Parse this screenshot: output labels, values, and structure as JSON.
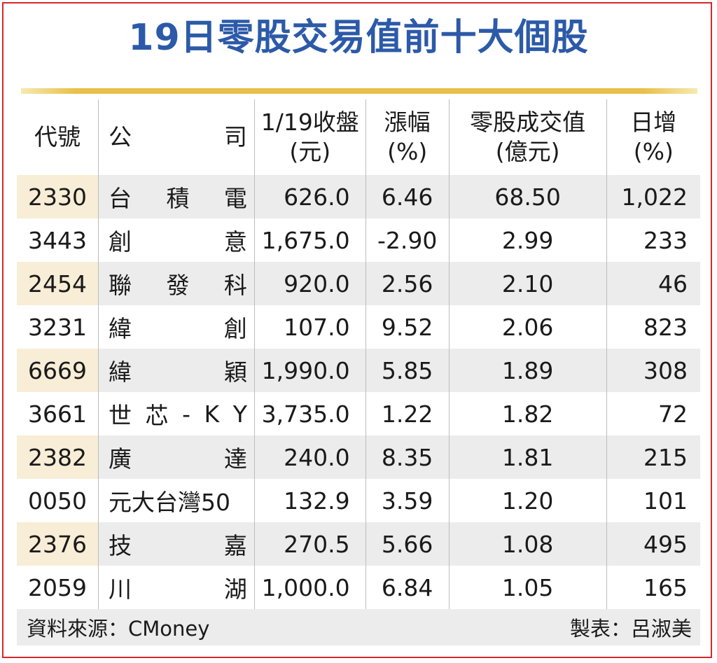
{
  "title": "19日零股交易值前十大個股",
  "headers": {
    "code": "代號",
    "company_left": "公",
    "company_right": "司",
    "close_line1": "1/19收盤",
    "close_line2": "(元)",
    "change_line1": "漲幅",
    "change_line2": "(%)",
    "value_line1": "零股成交值",
    "value_line2": "(億元)",
    "increase_line1": "日增",
    "increase_line2": "(%)"
  },
  "rows": [
    {
      "code": "2330",
      "company": [
        "台",
        "積",
        "電"
      ],
      "close": "626.0",
      "change": "6.46",
      "value": "68.50",
      "increase": "1,022"
    },
    {
      "code": "3443",
      "company": [
        "創",
        "意"
      ],
      "close": "1,675.0",
      "change": "-2.90",
      "value": "2.99",
      "increase": "233"
    },
    {
      "code": "2454",
      "company": [
        "聯",
        "發",
        "科"
      ],
      "close": "920.0",
      "change": "2.56",
      "value": "2.10",
      "increase": "46"
    },
    {
      "code": "3231",
      "company": [
        "緯",
        "創"
      ],
      "close": "107.0",
      "change": "9.52",
      "value": "2.06",
      "increase": "823"
    },
    {
      "code": "6669",
      "company": [
        "緯",
        "穎"
      ],
      "close": "1,990.0",
      "change": "5.85",
      "value": "1.89",
      "increase": "308"
    },
    {
      "code": "3661",
      "company": [
        "世",
        "芯",
        "-",
        "K",
        "Y"
      ],
      "close": "3,735.0",
      "change": "1.22",
      "value": "1.82",
      "increase": "72"
    },
    {
      "code": "2382",
      "company": [
        "廣",
        "達"
      ],
      "close": "240.0",
      "change": "8.35",
      "value": "1.81",
      "increase": "215"
    },
    {
      "code": "0050",
      "company": [
        "元大台灣50"
      ],
      "close": "132.9",
      "change": "3.59",
      "value": "1.20",
      "increase": "101"
    },
    {
      "code": "2376",
      "company": [
        "技",
        "嘉"
      ],
      "close": "270.5",
      "change": "5.66",
      "value": "1.08",
      "increase": "495"
    },
    {
      "code": "2059",
      "company": [
        "川",
        "湖"
      ],
      "close": "1,000.0",
      "change": "6.84",
      "value": "1.05",
      "increase": "165"
    }
  ],
  "footer": {
    "source": "資料來源：CMoney",
    "author": "製表：呂淑美"
  }
}
